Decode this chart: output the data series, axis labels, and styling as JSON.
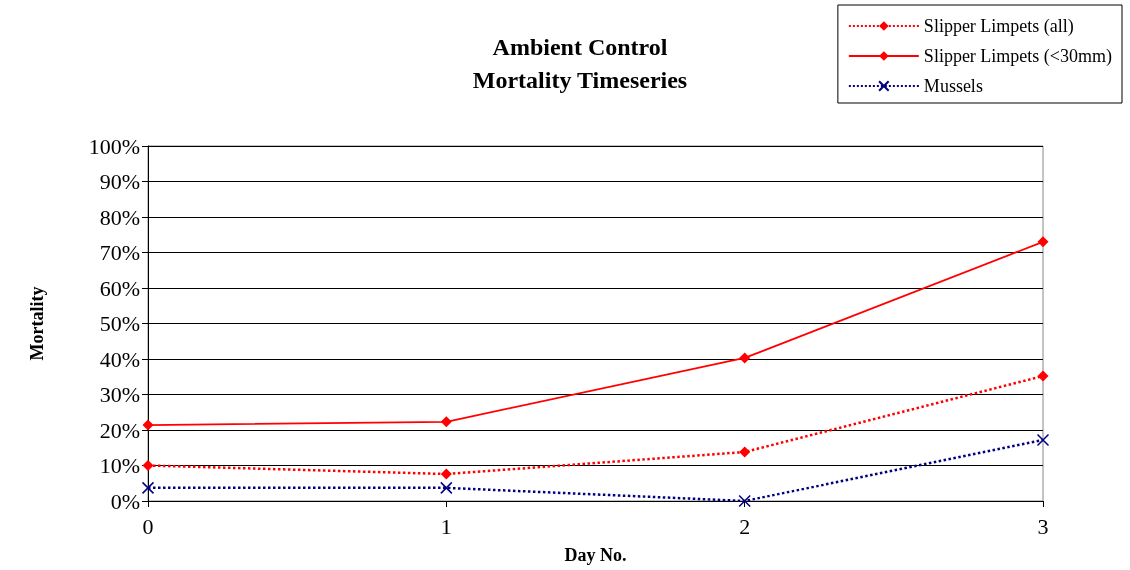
{
  "chart_data": {
    "type": "line",
    "title": "Ambient Control\nMortality Timeseries",
    "xlabel": "Day No.",
    "ylabel": "Mortality",
    "x": [
      0,
      1,
      2,
      3
    ],
    "xlim": [
      0,
      3
    ],
    "xticks": [
      0,
      1,
      2,
      3
    ],
    "ylim": [
      0,
      100
    ],
    "yticks": [
      {
        "value": 0,
        "label": "0%"
      },
      {
        "value": 10,
        "label": "10%"
      },
      {
        "value": 20,
        "label": "20%"
      },
      {
        "value": 30,
        "label": "30%"
      },
      {
        "value": 40,
        "label": "40%"
      },
      {
        "value": 50,
        "label": "50%"
      },
      {
        "value": 60,
        "label": "60%"
      },
      {
        "value": 70,
        "label": "70%"
      },
      {
        "value": 80,
        "label": "80%"
      },
      {
        "value": 90,
        "label": "90%"
      },
      {
        "value": 100,
        "label": "100%"
      }
    ],
    "grid": "y",
    "legend": "top right",
    "series": [
      {
        "name": "Slipper Limpets (all)",
        "color": "#ff0000",
        "marker": "diamond",
        "line_style": "dotted",
        "values": [
          10,
          7.6,
          13.8,
          35.2
        ]
      },
      {
        "name": "Slipper Limpets (<30mm)",
        "color": "#ff0000",
        "marker": "diamond",
        "line_style": "solid",
        "values": [
          21.4,
          22.3,
          40.3,
          73
        ]
      },
      {
        "name": "Mussels",
        "color": "#000080",
        "marker": "cross",
        "line_style": "dotted",
        "values": [
          3.7,
          3.7,
          0,
          17.2
        ]
      }
    ]
  }
}
